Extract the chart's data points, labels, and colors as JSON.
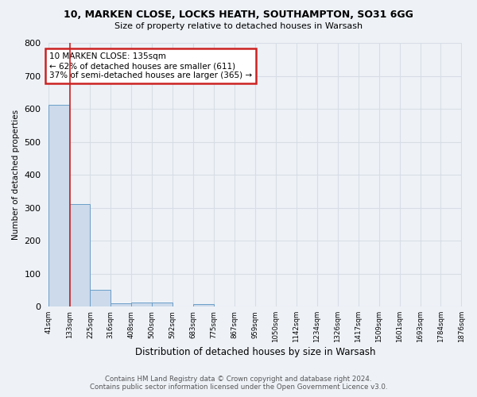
{
  "title1": "10, MARKEN CLOSE, LOCKS HEATH, SOUTHAMPTON, SO31 6GG",
  "title2": "Size of property relative to detached houses in Warsash",
  "xlabel": "Distribution of detached houses by size in Warsash",
  "ylabel": "Number of detached properties",
  "footer1": "Contains HM Land Registry data © Crown copyright and database right 2024.",
  "footer2": "Contains public sector information licensed under the Open Government Licence v3.0.",
  "annotation_line1": "10 MARKEN CLOSE: 135sqm",
  "annotation_line2": "← 62% of detached houses are smaller (611)",
  "annotation_line3": "37% of semi-detached houses are larger (365) →",
  "bar_edges": [
    41,
    133,
    225,
    316,
    408,
    500,
    592,
    683,
    775,
    867,
    959,
    1050,
    1142,
    1234,
    1326,
    1417,
    1509,
    1601,
    1693,
    1784,
    1876
  ],
  "bar_heights": [
    611,
    311,
    52,
    10,
    12,
    12,
    1,
    8,
    0,
    0,
    0,
    0,
    0,
    0,
    0,
    0,
    0,
    0,
    0,
    0
  ],
  "bar_color": "#ccdaeb",
  "bar_edgecolor": "#6b9ec8",
  "redline_x": 135,
  "ylim": [
    0,
    800
  ],
  "yticks": [
    0,
    100,
    200,
    300,
    400,
    500,
    600,
    700,
    800
  ],
  "bg_color": "#eef2f7",
  "grid_color": "#d8dde5",
  "annotation_box_facecolor": "#ffffff",
  "annotation_box_edgecolor": "#cc2222",
  "redline_color": "#cc2222"
}
